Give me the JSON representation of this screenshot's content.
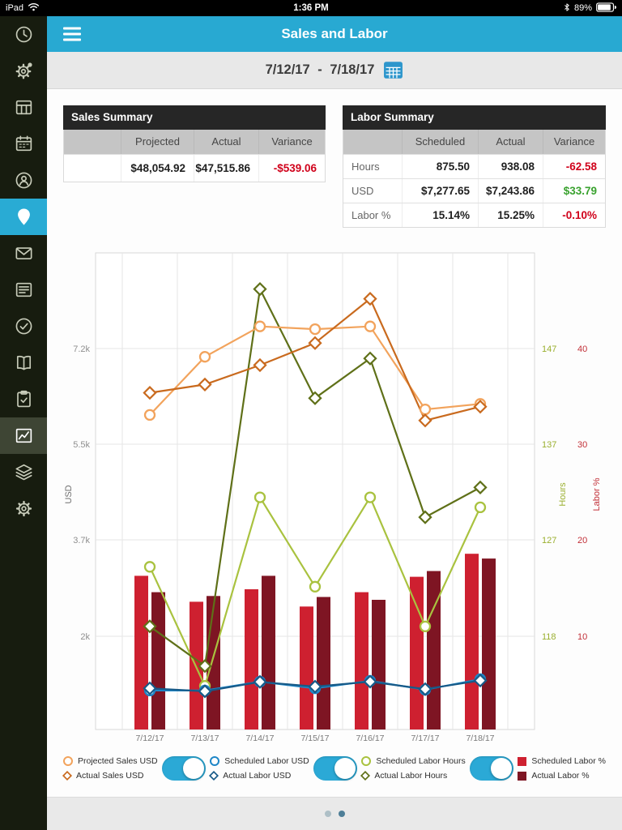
{
  "status_bar": {
    "device": "iPad",
    "time": "1:36 PM",
    "battery_percent": "89%"
  },
  "header": {
    "title": "Sales and Labor"
  },
  "date_bar": {
    "range": "7/12/17 - 7/18/17"
  },
  "sidebar": {
    "icons": [
      "clock",
      "gear-badge",
      "schedule-grid",
      "calendar",
      "contacts",
      "location-person",
      "messages",
      "newsfeed",
      "tasks-check",
      "handbook",
      "checklist",
      "reports-chart",
      "training-layers",
      "settings-gear"
    ],
    "active_item": "location-person",
    "secondary_active_item": "reports-chart"
  },
  "sales_summary": {
    "title": "Sales Summary",
    "columns": [
      "",
      "Projected",
      "Actual",
      "Variance"
    ],
    "row": {
      "projected": "$48,054.92",
      "actual": "$47,515.86",
      "variance": "-$539.06"
    }
  },
  "labor_summary": {
    "title": "Labor Summary",
    "columns": [
      "",
      "Scheduled",
      "Actual",
      "Variance"
    ],
    "rows": [
      {
        "label": "Hours",
        "scheduled": "875.50",
        "actual": "938.08",
        "variance": "-62.58"
      },
      {
        "label": "USD",
        "scheduled": "$7,277.65",
        "actual": "$7,243.86",
        "variance": "$33.79"
      },
      {
        "label": "Labor %",
        "scheduled": "15.14%",
        "actual": "15.25%",
        "variance": "-0.10%"
      }
    ]
  },
  "chart_data": {
    "type": "combo bar+line",
    "categories": [
      "7/12/17",
      "7/13/17",
      "7/14/17",
      "7/15/17",
      "7/16/17",
      "7/17/17",
      "7/18/17"
    ],
    "axes": {
      "usd": {
        "label": "USD",
        "tick_labels": [
          "7.2k",
          "5.5k",
          "3.7k",
          "2k"
        ],
        "tick_values": [
          7200,
          5500,
          3700,
          2000
        ],
        "color": "#8F8F8F"
      },
      "hours": {
        "label": "Hours",
        "tick_labels": [
          "147",
          "137",
          "127",
          "118"
        ],
        "tick_values": [
          147,
          137,
          127,
          118
        ],
        "color": "#9AAF2E"
      },
      "pct": {
        "label": "Labor %",
        "tick_labels": [
          "40",
          "30",
          "20",
          "10"
        ],
        "tick_values": [
          40,
          30,
          20,
          10
        ],
        "color": "#C23038"
      }
    },
    "series": [
      {
        "name": "Scheduled Labor %",
        "kind": "bar",
        "axis": "pct",
        "color": "#CE2030",
        "values": [
          16.3,
          13.6,
          14.9,
          13.1,
          14.6,
          16.2,
          18.6
        ]
      },
      {
        "name": "Actual Labor %",
        "kind": "bar",
        "axis": "pct",
        "color": "#7E1523",
        "values": [
          14.6,
          14.2,
          16.3,
          14.1,
          13.8,
          16.8,
          18.1
        ]
      },
      {
        "name": "Scheduled Labor Hours",
        "kind": "line",
        "marker": "circle",
        "axis": "hours",
        "color": "#A9C23F",
        "values": [
          125,
          113,
          132,
          123,
          132,
          119,
          131
        ]
      },
      {
        "name": "Actual Labor Hours",
        "kind": "line",
        "marker": "diamond",
        "axis": "hours",
        "color": "#5F7018",
        "values": [
          119,
          115,
          153,
          142,
          146,
          130,
          133
        ]
      },
      {
        "name": "Projected Sales USD",
        "kind": "line",
        "marker": "circle",
        "axis": "usd",
        "color": "#F2A35C",
        "values": [
          6000,
          7050,
          7600,
          7550,
          7600,
          6100,
          6200
        ]
      },
      {
        "name": "Actual Sales USD",
        "kind": "line",
        "marker": "diamond",
        "axis": "usd",
        "color": "#C96A1E",
        "values": [
          6400,
          6550,
          6900,
          7300,
          8100,
          5900,
          6150
        ]
      },
      {
        "name": "Scheduled Labor USD",
        "kind": "line",
        "marker": "circle",
        "axis": "usd",
        "color": "#1E86C7",
        "values": [
          1020,
          1020,
          1180,
          1060,
          1195,
          1035,
          1225
        ]
      },
      {
        "name": "Actual Labor USD",
        "kind": "line",
        "marker": "diamond",
        "axis": "usd",
        "color": "#175A88",
        "values": [
          1060,
          1005,
          1175,
          1090,
          1180,
          1045,
          1200
        ]
      }
    ]
  },
  "legend": {
    "groups": [
      {
        "entries": [
          {
            "label": "Projected Sales USD",
            "marker": "circle",
            "color": "#F2A35C"
          },
          {
            "label": "Actual Sales USD",
            "marker": "diamond",
            "color": "#C96A1E"
          }
        ],
        "toggle": true
      },
      {
        "entries": [
          {
            "label": "Scheduled Labor USD",
            "marker": "circle",
            "color": "#1E86C7"
          },
          {
            "label": "Actual Labor USD",
            "marker": "diamond",
            "color": "#175A88"
          }
        ],
        "toggle": true
      },
      {
        "entries": [
          {
            "label": "Scheduled Labor Hours",
            "marker": "circle",
            "color": "#A9C23F"
          },
          {
            "label": "Actual Labor Hours",
            "marker": "diamond",
            "color": "#5F7018"
          }
        ],
        "toggle": true
      },
      {
        "entries": [
          {
            "label": "Scheduled Labor %",
            "marker": "square",
            "color": "#CE2030"
          },
          {
            "label": "Actual Labor %",
            "marker": "square",
            "color": "#7E1523"
          }
        ],
        "toggle": false
      }
    ]
  },
  "pagination": {
    "page_count": 2,
    "active_page": 2
  },
  "colors": {
    "accent_teal": "#29ABD4",
    "negative": "#D0021B",
    "positive": "#3AA22F",
    "sidebar_bg": "#171C0F",
    "header_bg": "#28A9D2"
  }
}
